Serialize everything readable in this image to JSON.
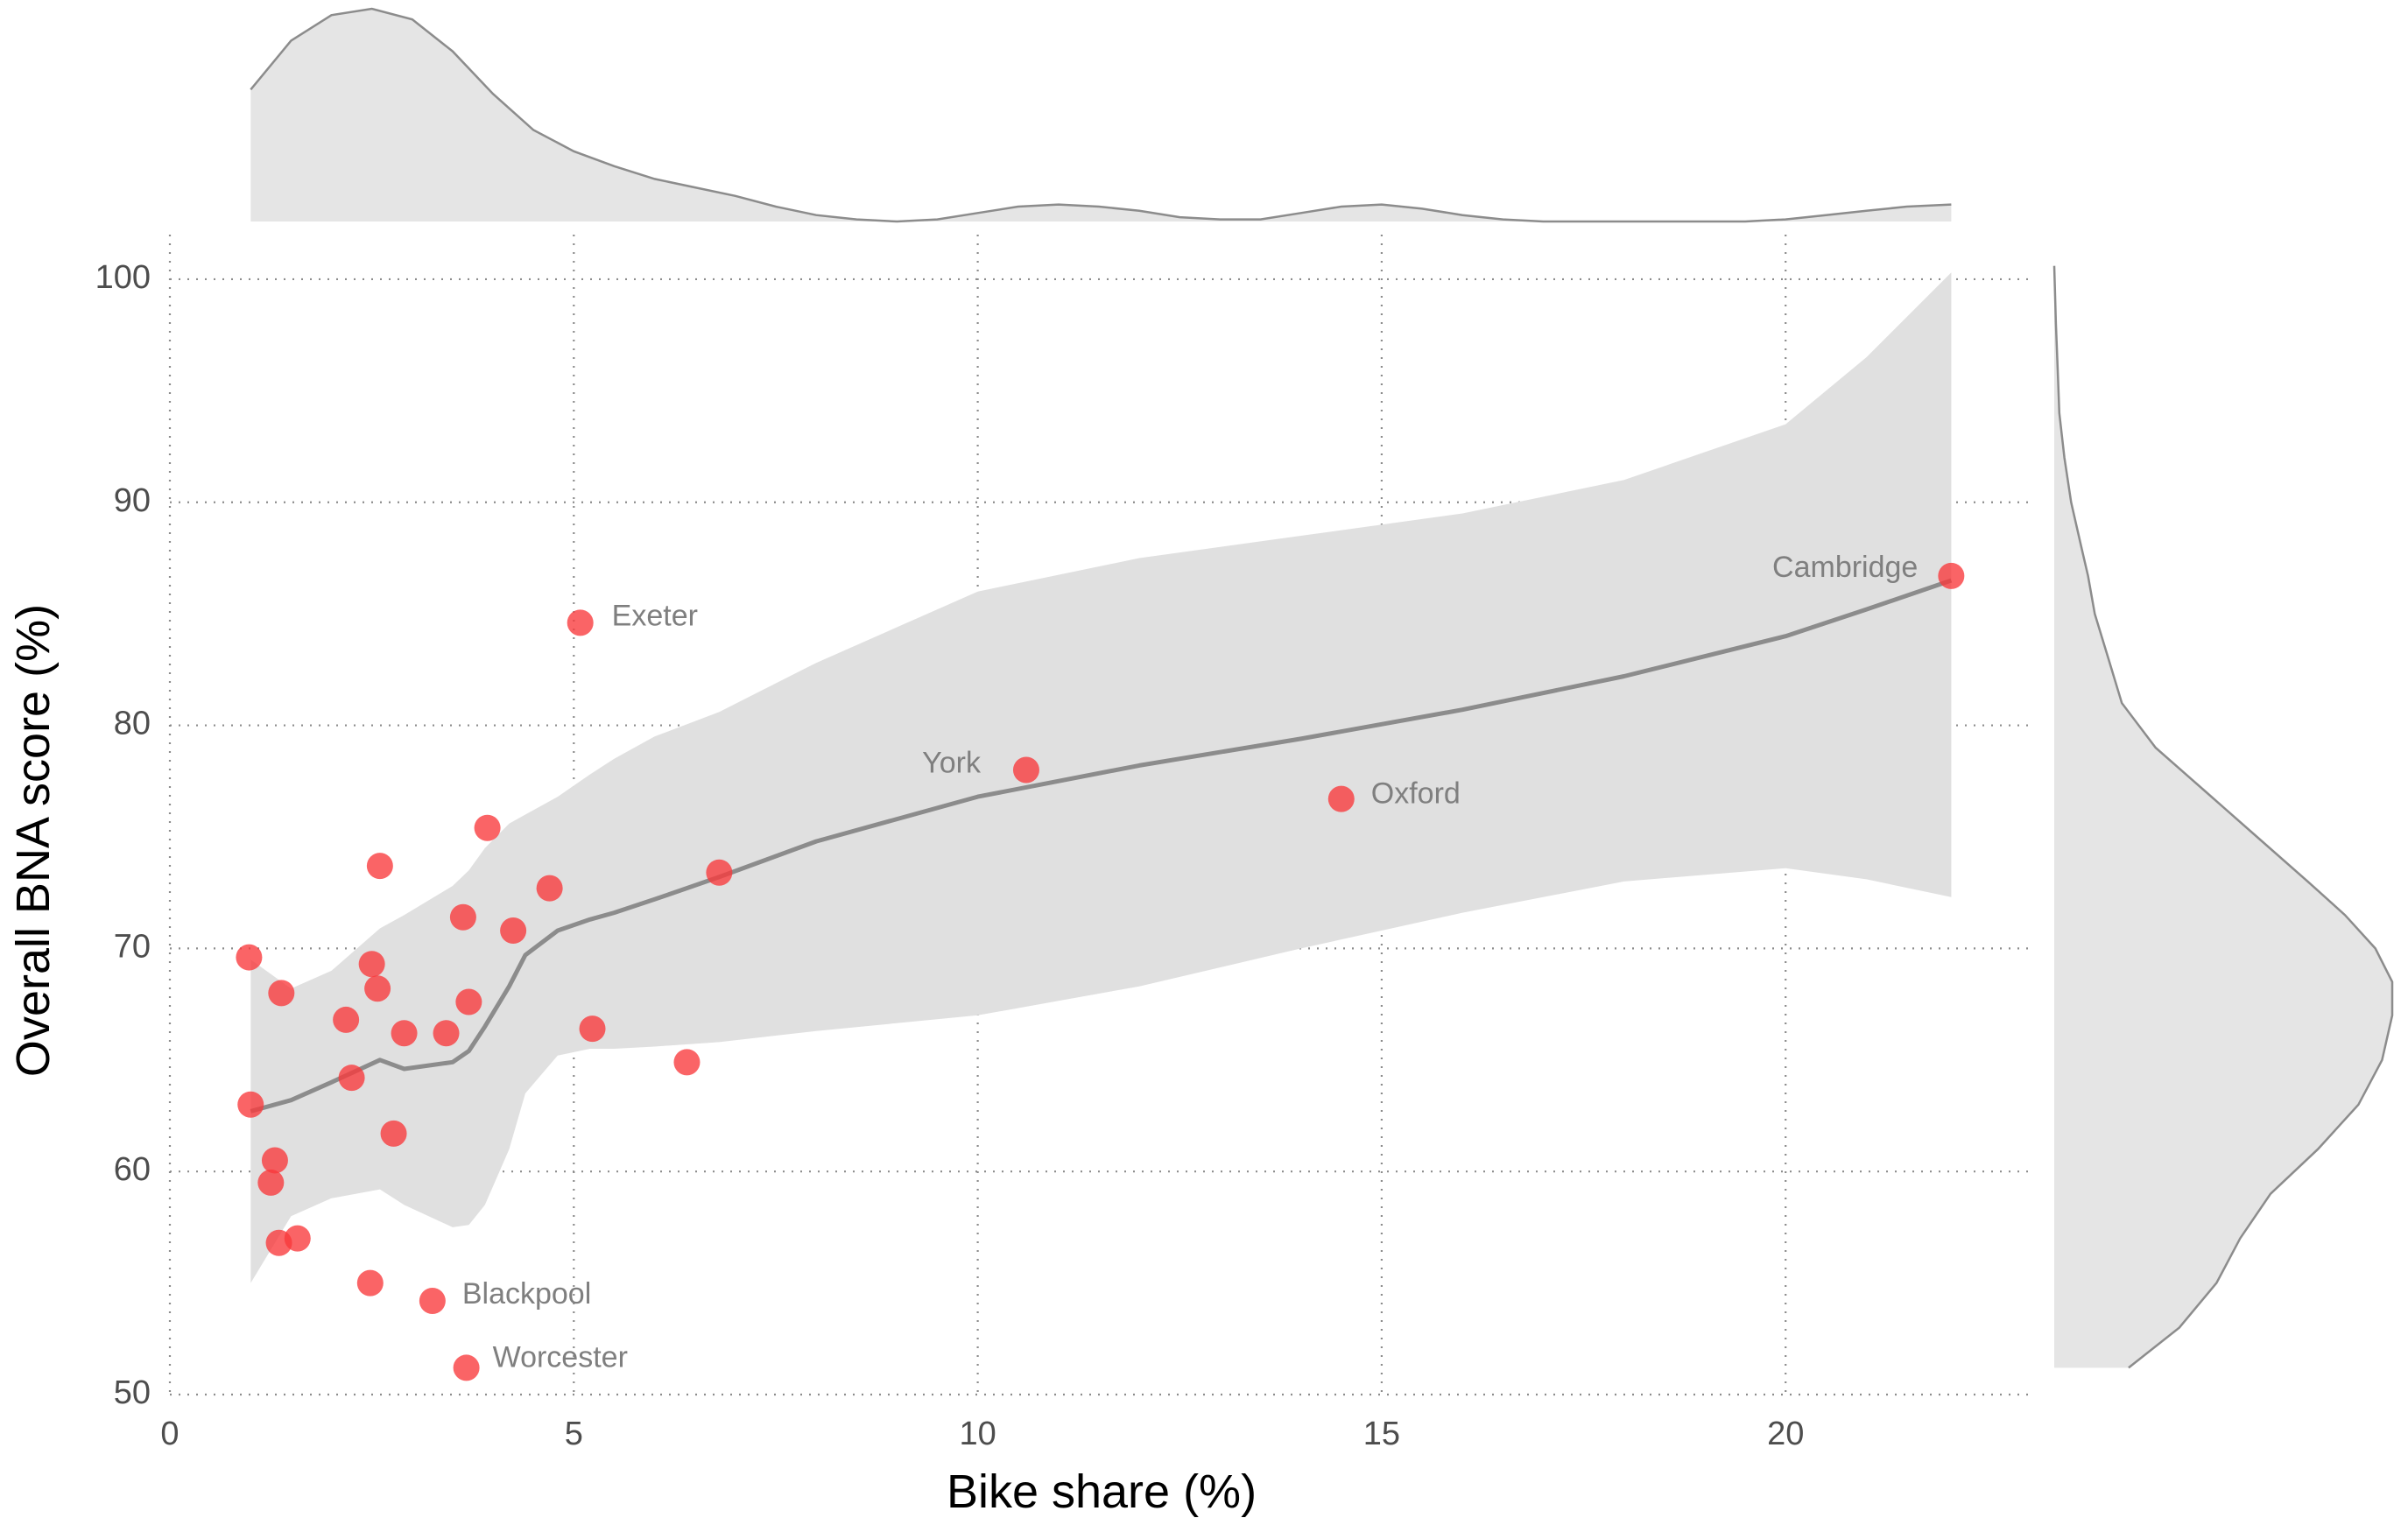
{
  "chart_data": {
    "type": "scatter",
    "title": "",
    "xlabel": "Bike share (%)",
    "ylabel": "Overall BNA score (%)",
    "xlim": [
      0,
      23
    ],
    "ylim": [
      50,
      102
    ],
    "x_ticks": [
      0,
      5,
      10,
      15,
      20
    ],
    "y_ticks": [
      50,
      60,
      70,
      80,
      90,
      100
    ],
    "grid": "dotted major gridlines",
    "legend": "none",
    "marginal_plots": "density curves on top (bike share) and right (BNA score)",
    "colors": {
      "points": "#f8383b",
      "smooth_line": "#8c8c8c",
      "ribbon": "#e0e0e0",
      "density_fill": "#e5e5e5",
      "density_line": "#8c8c8c",
      "grid": "#8c8c8c"
    },
    "points": [
      {
        "x": 0.98,
        "y": 69.6
      },
      {
        "x": 1.0,
        "y": 63.0
      },
      {
        "x": 1.25,
        "y": 59.5
      },
      {
        "x": 1.3,
        "y": 60.5
      },
      {
        "x": 1.35,
        "y": 56.8
      },
      {
        "x": 1.38,
        "y": 68.0
      },
      {
        "x": 1.58,
        "y": 57.0
      },
      {
        "x": 2.18,
        "y": 66.8
      },
      {
        "x": 2.25,
        "y": 64.2
      },
      {
        "x": 2.48,
        "y": 55.0
      },
      {
        "x": 2.5,
        "y": 69.3
      },
      {
        "x": 2.57,
        "y": 68.2
      },
      {
        "x": 2.6,
        "y": 73.7
      },
      {
        "x": 2.77,
        "y": 61.7
      },
      {
        "x": 2.9,
        "y": 66.2
      },
      {
        "x": 3.25,
        "y": 54.2,
        "label": "Blackpool"
      },
      {
        "x": 3.42,
        "y": 66.2
      },
      {
        "x": 3.63,
        "y": 71.4
      },
      {
        "x": 3.67,
        "y": 51.2,
        "label": "Worcester"
      },
      {
        "x": 3.7,
        "y": 67.6
      },
      {
        "x": 3.93,
        "y": 75.4
      },
      {
        "x": 4.25,
        "y": 70.8
      },
      {
        "x": 4.7,
        "y": 72.7
      },
      {
        "x": 5.08,
        "y": 84.6,
        "label": "Exeter"
      },
      {
        "x": 5.23,
        "y": 66.4
      },
      {
        "x": 6.4,
        "y": 64.9
      },
      {
        "x": 6.8,
        "y": 73.4
      },
      {
        "x": 10.6,
        "y": 78.0,
        "label": "York"
      },
      {
        "x": 14.5,
        "y": 76.7,
        "label": "Oxford"
      },
      {
        "x": 22.05,
        "y": 86.7,
        "label": "Cambridge"
      }
    ],
    "smooth": {
      "x": [
        1.0,
        1.5,
        2.0,
        2.6,
        2.9,
        3.5,
        3.7,
        3.9,
        4.2,
        4.4,
        4.8,
        5.2,
        5.5,
        6.0,
        6.8,
        8.0,
        10.0,
        12.0,
        14.0,
        16.0,
        18.0,
        20.0,
        21.0,
        22.05
      ],
      "y": [
        62.7,
        63.2,
        64.0,
        65.0,
        64.6,
        64.9,
        65.4,
        66.5,
        68.3,
        69.7,
        70.8,
        71.3,
        71.6,
        72.2,
        73.2,
        74.8,
        76.8,
        78.2,
        79.4,
        80.7,
        82.2,
        84.0,
        85.2,
        86.5
      ],
      "lower": [
        55.0,
        58.0,
        58.8,
        59.2,
        58.5,
        57.5,
        57.6,
        58.5,
        61.0,
        63.5,
        65.2,
        65.5,
        65.5,
        65.6,
        65.8,
        66.3,
        67.0,
        68.3,
        70.0,
        71.6,
        73.0,
        73.6,
        73.1,
        72.3
      ],
      "upper": [
        69.5,
        68.2,
        69.0,
        70.9,
        71.5,
        72.8,
        73.5,
        74.5,
        75.6,
        76.0,
        76.8,
        77.8,
        78.5,
        79.5,
        80.6,
        82.8,
        86.0,
        87.5,
        88.5,
        89.5,
        91.0,
        93.5,
        96.5,
        100.3
      ]
    },
    "density_x": {
      "x": [
        1.0,
        1.5,
        2.0,
        2.5,
        3.0,
        3.5,
        4.0,
        4.5,
        5.0,
        5.5,
        6.0,
        6.5,
        7.0,
        7.5,
        8.0,
        8.5,
        9.0,
        9.5,
        10.0,
        10.5,
        11.0,
        11.5,
        12.0,
        12.5,
        13.0,
        13.5,
        14.0,
        14.5,
        15.0,
        15.5,
        16.0,
        16.5,
        17.0,
        17.5,
        18.0,
        18.5,
        19.0,
        19.5,
        20.0,
        20.5,
        21.0,
        21.5,
        22.05
      ],
      "density": [
        0.62,
        0.85,
        0.97,
        1.0,
        0.95,
        0.8,
        0.6,
        0.43,
        0.33,
        0.26,
        0.2,
        0.16,
        0.12,
        0.07,
        0.03,
        0.01,
        0.0,
        0.01,
        0.04,
        0.07,
        0.08,
        0.07,
        0.05,
        0.02,
        0.01,
        0.01,
        0.04,
        0.07,
        0.08,
        0.06,
        0.03,
        0.01,
        0.0,
        0.0,
        0.0,
        0.0,
        0.0,
        0.0,
        0.01,
        0.03,
        0.05,
        0.07,
        0.08
      ]
    },
    "density_y": {
      "y": [
        51.2,
        53.0,
        55.0,
        57.0,
        59.0,
        61.0,
        63.0,
        65.0,
        67.0,
        68.5,
        70.0,
        71.5,
        73.0,
        75.0,
        77.0,
        79.0,
        81.0,
        83.0,
        85.0,
        86.7,
        88.0,
        90.0,
        92.0,
        94.0,
        96.0,
        98.0,
        100.6
      ],
      "density": [
        0.22,
        0.37,
        0.48,
        0.55,
        0.64,
        0.78,
        0.9,
        0.97,
        1.0,
        1.0,
        0.95,
        0.86,
        0.75,
        0.6,
        0.45,
        0.3,
        0.2,
        0.16,
        0.12,
        0.1,
        0.08,
        0.05,
        0.03,
        0.015,
        0.01,
        0.005,
        0.0
      ]
    }
  }
}
